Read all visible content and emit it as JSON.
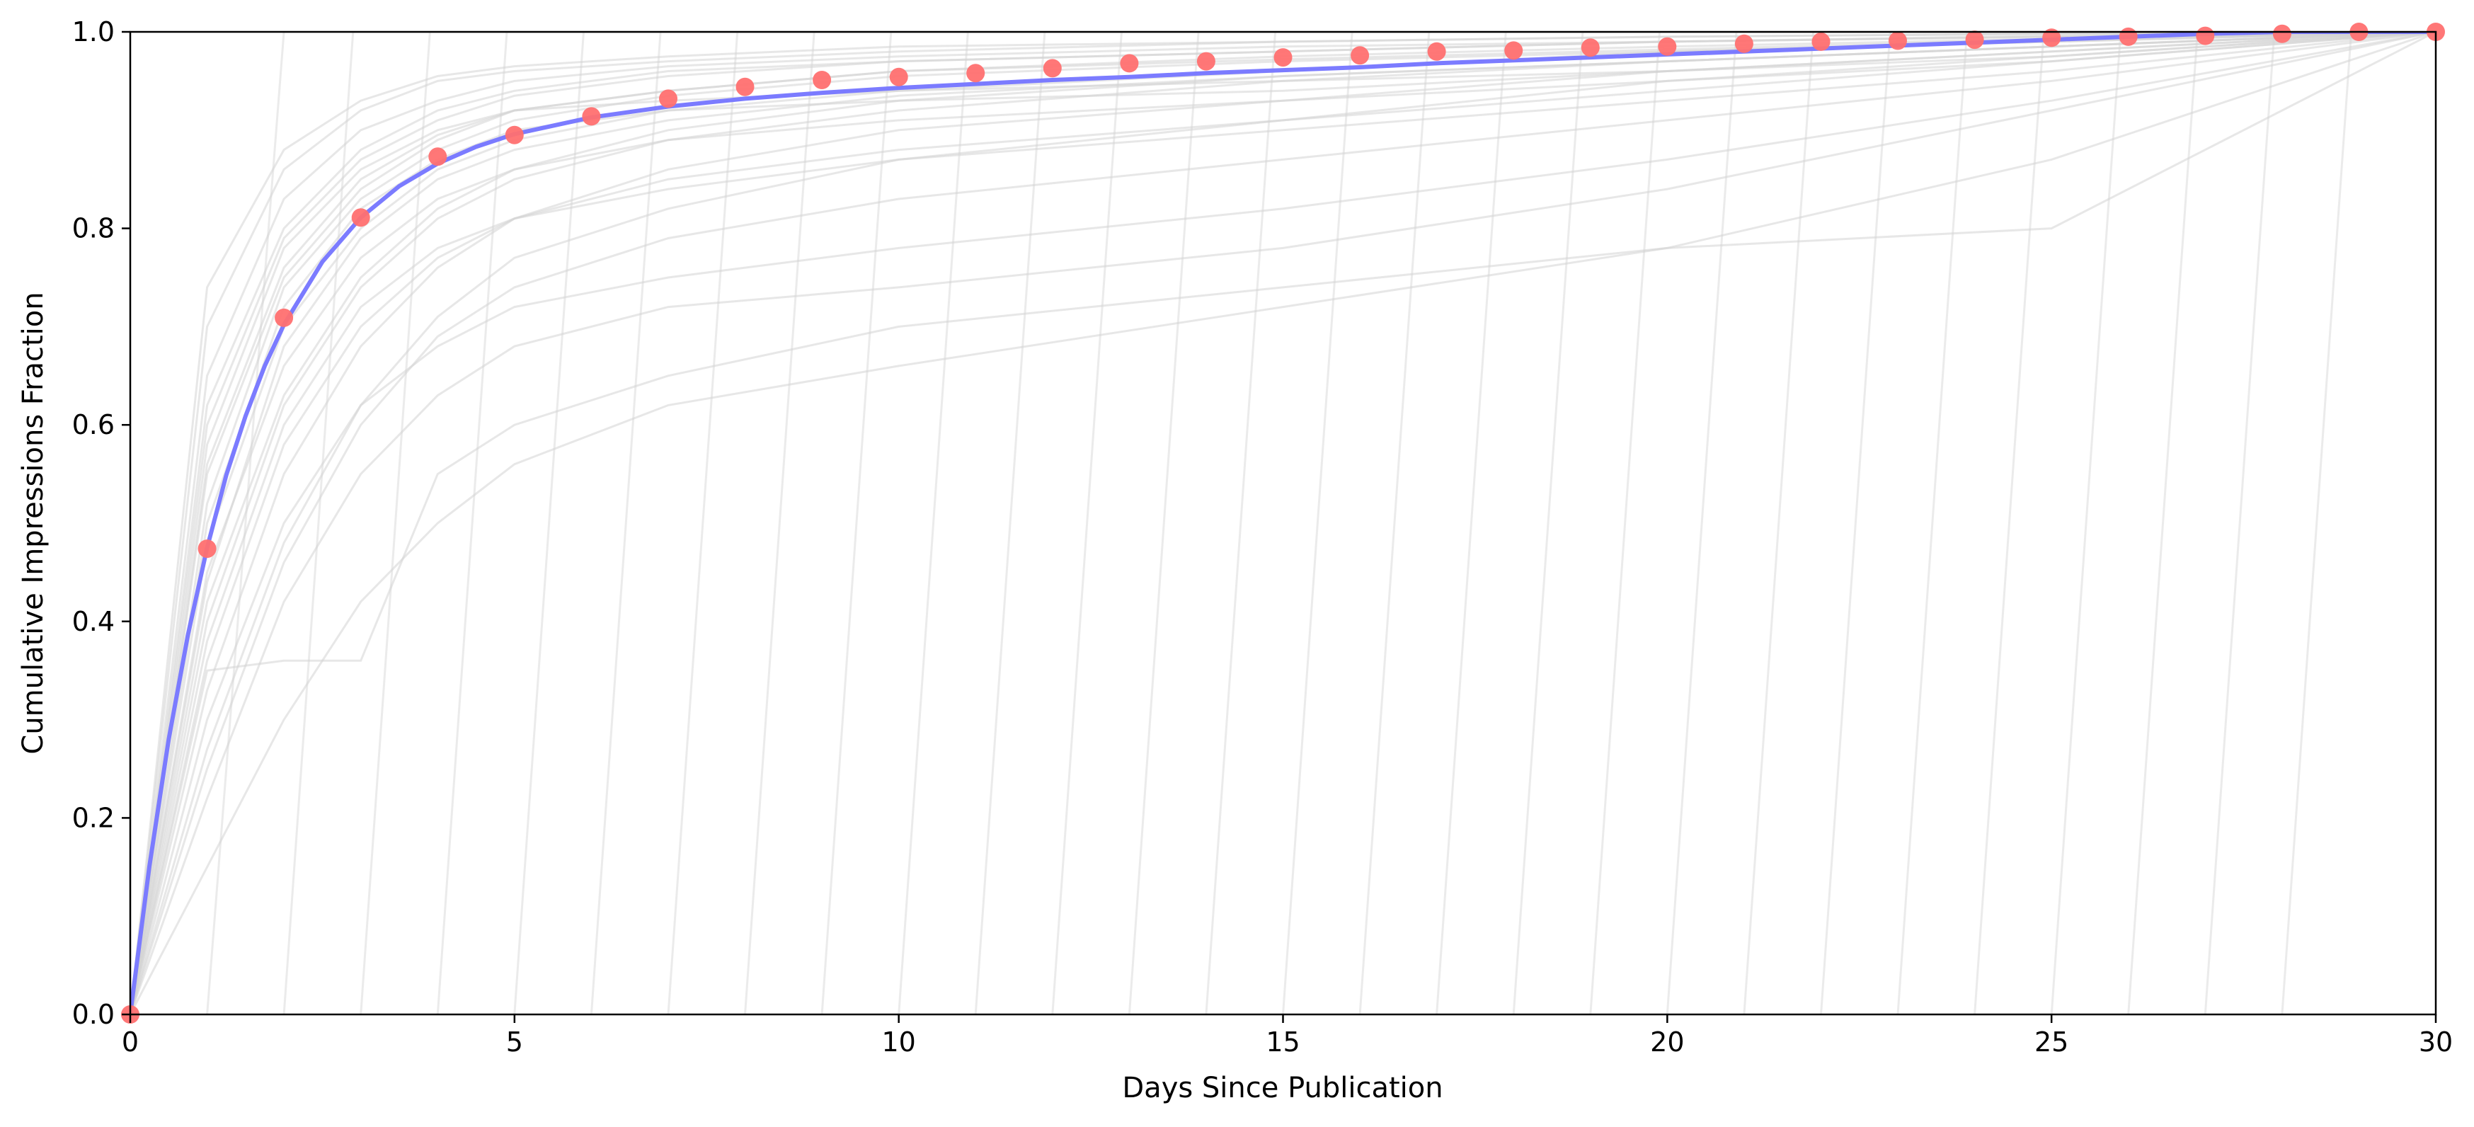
{
  "chart_data": {
    "type": "line",
    "title": "",
    "xlabel": "Days Since Publication",
    "ylabel": "Cumulative Impressions Fraction",
    "xlim": [
      0,
      30
    ],
    "ylim": [
      0,
      1.0
    ],
    "xticks": [
      0,
      5,
      10,
      15,
      20,
      25,
      30
    ],
    "xtick_labels": [
      "0",
      "5",
      "10",
      "15",
      "20",
      "25",
      "30"
    ],
    "yticks": [
      0,
      0.2,
      0.4,
      0.6,
      0.8,
      1.0
    ],
    "ytick_labels": [
      "0.0",
      "0.2",
      "0.4",
      "0.6",
      "0.8",
      "1.0"
    ],
    "grid": false,
    "legend": "none",
    "colors": {
      "individual_articles": "#d3d3d3",
      "average_points": "#ff7070",
      "fitted_curve": "#7b7bff"
    },
    "series": [
      {
        "kind": "scatter",
        "x": [
          0,
          1,
          2,
          3,
          4,
          5,
          6,
          7,
          8,
          9,
          10,
          11,
          12,
          13,
          14,
          15,
          16,
          17,
          18,
          19,
          20,
          21,
          22,
          23,
          24,
          25,
          26,
          27,
          28,
          29,
          30
        ],
        "values": [
          0.0,
          0.474,
          0.709,
          0.811,
          0.873,
          0.895,
          0.914,
          0.932,
          0.944,
          0.951,
          0.954,
          0.958,
          0.963,
          0.968,
          0.97,
          0.974,
          0.976,
          0.98,
          0.981,
          0.984,
          0.985,
          0.988,
          0.99,
          0.991,
          0.992,
          0.994,
          0.995,
          0.996,
          0.998,
          1.0,
          1.0
        ]
      },
      {
        "kind": "fit",
        "x": [
          0,
          0.25,
          0.5,
          0.75,
          1,
          1.25,
          1.5,
          1.75,
          2,
          2.5,
          3,
          3.5,
          4,
          4.5,
          5,
          6,
          7,
          8,
          9,
          10,
          11,
          12,
          13,
          14,
          15,
          16,
          17,
          18,
          19,
          20,
          21,
          22,
          23,
          24,
          25,
          26,
          27,
          28,
          29,
          30
        ],
        "values": [
          0.0,
          0.151,
          0.28,
          0.386,
          0.475,
          0.549,
          0.609,
          0.66,
          0.702,
          0.766,
          0.811,
          0.843,
          0.866,
          0.883,
          0.896,
          0.913,
          0.924,
          0.932,
          0.938,
          0.943,
          0.947,
          0.951,
          0.954,
          0.958,
          0.961,
          0.964,
          0.968,
          0.971,
          0.974,
          0.977,
          0.98,
          0.983,
          0.986,
          0.989,
          0.992,
          0.995,
          0.998,
          1.0,
          1.0,
          1.0
        ]
      },
      {
        "kind": "individual-curves",
        "curves": [
          {
            "x": [
              0,
              1,
              2,
              3,
              4,
              5,
              7,
              10,
              15,
              20,
              25,
              30
            ],
            "values": [
              0,
              0.62,
              0.8,
              0.88,
              0.92,
              0.94,
              0.96,
              0.97,
              0.98,
              0.99,
              0.995,
              1.0
            ]
          },
          {
            "x": [
              0,
              1,
              2,
              3,
              4,
              5,
              7,
              10,
              15,
              20,
              25,
              30
            ],
            "values": [
              0,
              0.55,
              0.75,
              0.84,
              0.89,
              0.92,
              0.94,
              0.96,
              0.975,
              0.985,
              0.993,
              1.0
            ]
          },
          {
            "x": [
              0,
              1,
              2,
              3,
              4,
              5,
              7,
              10,
              15,
              20,
              25,
              30
            ],
            "values": [
              0,
              0.48,
              0.7,
              0.8,
              0.86,
              0.89,
              0.92,
              0.94,
              0.96,
              0.98,
              0.99,
              1.0
            ]
          },
          {
            "x": [
              0,
              1,
              2,
              3,
              4,
              5,
              7,
              10,
              15,
              20,
              25,
              30
            ],
            "values": [
              0,
              0.4,
              0.62,
              0.74,
              0.81,
              0.85,
              0.89,
              0.92,
              0.95,
              0.97,
              0.985,
              1.0
            ]
          },
          {
            "x": [
              0,
              1,
              2,
              3,
              4,
              5,
              7,
              10,
              15,
              20,
              25,
              30
            ],
            "values": [
              0,
              0.33,
              0.55,
              0.68,
              0.76,
              0.81,
              0.86,
              0.9,
              0.93,
              0.96,
              0.98,
              1.0
            ]
          },
          {
            "x": [
              0,
              1,
              2,
              3,
              4,
              5,
              7,
              10,
              15,
              20,
              25,
              30
            ],
            "values": [
              0,
              0.27,
              0.48,
              0.62,
              0.71,
              0.77,
              0.82,
              0.87,
              0.91,
              0.95,
              0.975,
              1.0
            ]
          },
          {
            "x": [
              0,
              1,
              2,
              3,
              4,
              5,
              7,
              10,
              15,
              20,
              25,
              30
            ],
            "values": [
              0,
              0.7,
              0.86,
              0.92,
              0.95,
              0.96,
              0.97,
              0.98,
              0.99,
              0.995,
              0.998,
              1.0
            ]
          },
          {
            "x": [
              0,
              1,
              2,
              3,
              4,
              5,
              7,
              10,
              15,
              20,
              25,
              30
            ],
            "values": [
              0,
              0.74,
              0.88,
              0.93,
              0.955,
              0.965,
              0.975,
              0.985,
              0.99,
              0.995,
              0.998,
              1.0
            ]
          },
          {
            "x": [
              0,
              1,
              2,
              3,
              4,
              5,
              7,
              10,
              15,
              20,
              25,
              30
            ],
            "values": [
              0,
              0.45,
              0.66,
              0.77,
              0.83,
              0.86,
              0.89,
              0.91,
              0.93,
              0.95,
              0.97,
              1.0
            ]
          },
          {
            "x": [
              0,
              1,
              2,
              3,
              4,
              5,
              7,
              10,
              15,
              20,
              25,
              30
            ],
            "values": [
              0,
              0.38,
              0.6,
              0.72,
              0.78,
              0.81,
              0.84,
              0.87,
              0.9,
              0.93,
              0.96,
              1.0
            ]
          },
          {
            "x": [
              0,
              1,
              2,
              3,
              4,
              5,
              7,
              10,
              15,
              20,
              25,
              30
            ],
            "values": [
              0,
              0.3,
              0.5,
              0.62,
              0.68,
              0.72,
              0.75,
              0.78,
              0.82,
              0.87,
              0.93,
              1.0
            ]
          },
          {
            "x": [
              0,
              1,
              2,
              3,
              4,
              5,
              7,
              10,
              15,
              20,
              25,
              30
            ],
            "values": [
              0,
              0.22,
              0.42,
              0.55,
              0.63,
              0.68,
              0.72,
              0.74,
              0.78,
              0.84,
              0.92,
              1.0
            ]
          },
          {
            "x": [
              0,
              1,
              2,
              3,
              4,
              5,
              7,
              10,
              15,
              20,
              25,
              30
            ],
            "values": [
              0,
              0.58,
              0.78,
              0.86,
              0.9,
              0.92,
              0.93,
              0.94,
              0.95,
              0.96,
              0.98,
              1.0
            ]
          },
          {
            "x": [
              0,
              1,
              2,
              3,
              4,
              5,
              7,
              10,
              15,
              20,
              25,
              30
            ],
            "values": [
              0,
              0.5,
              0.72,
              0.82,
              0.87,
              0.9,
              0.92,
              0.93,
              0.94,
              0.96,
              0.975,
              1.0
            ]
          },
          {
            "x": [
              0,
              1,
              2,
              3,
              4,
              5,
              7,
              10,
              15,
              20,
              25,
              30
            ],
            "values": [
              0,
              0.36,
              0.58,
              0.7,
              0.77,
              0.81,
              0.85,
              0.88,
              0.91,
              0.94,
              0.97,
              1.0
            ]
          },
          {
            "x": [
              0,
              1,
              2,
              3,
              4,
              5,
              7,
              10,
              15,
              20,
              25,
              30
            ],
            "values": [
              0,
              0.65,
              0.83,
              0.9,
              0.93,
              0.95,
              0.965,
              0.975,
              0.985,
              0.99,
              0.995,
              1.0
            ]
          },
          {
            "x": [
              0,
              1,
              2,
              3,
              4,
              5,
              7,
              10,
              15,
              20,
              25,
              30
            ],
            "values": [
              0,
              0.42,
              0.63,
              0.75,
              0.82,
              0.86,
              0.9,
              0.93,
              0.955,
              0.97,
              0.985,
              1.0
            ]
          },
          {
            "x": [
              0,
              1,
              2,
              3,
              4,
              5,
              7,
              10,
              15,
              20,
              25,
              30
            ],
            "values": [
              0,
              0.52,
              0.74,
              0.83,
              0.88,
              0.91,
              0.935,
              0.955,
              0.97,
              0.98,
              0.99,
              1.0
            ]
          },
          {
            "x": [
              0,
              1,
              2,
              3,
              4,
              5,
              7,
              10,
              15,
              20,
              25,
              30
            ],
            "values": [
              0,
              0.25,
              0.46,
              0.6,
              0.69,
              0.74,
              0.79,
              0.83,
              0.87,
              0.91,
              0.95,
              1.0
            ]
          },
          {
            "x": [
              0,
              1,
              2,
              3,
              4,
              5,
              7,
              10,
              15,
              20,
              25,
              30
            ],
            "values": [
              0,
              0.6,
              0.79,
              0.87,
              0.91,
              0.935,
              0.955,
              0.97,
              0.98,
              0.99,
              0.996,
              1.0
            ]
          },
          {
            "x": [
              0,
              1,
              2,
              3,
              4,
              5,
              7,
              10,
              15,
              20,
              25,
              30
            ],
            "values": [
              0,
              0.35,
              0.36,
              0.36,
              0.55,
              0.6,
              0.65,
              0.7,
              0.74,
              0.78,
              0.8,
              1.0
            ]
          },
          {
            "x": [
              0,
              1,
              2,
              3,
              4,
              5,
              7,
              10,
              15,
              20,
              25,
              30
            ],
            "values": [
              0,
              0.15,
              0.3,
              0.42,
              0.5,
              0.56,
              0.62,
              0.66,
              0.72,
              0.78,
              0.87,
              1.0
            ]
          },
          {
            "x": [
              0,
              1,
              2,
              3,
              4,
              5,
              7,
              10,
              15,
              20,
              25,
              30
            ],
            "values": [
              0,
              0.44,
              0.68,
              0.79,
              0.85,
              0.88,
              0.91,
              0.935,
              0.955,
              0.97,
              0.985,
              1.0
            ]
          },
          {
            "x": [
              0,
              1,
              2,
              3,
              4,
              5,
              7,
              10,
              15,
              20,
              25,
              30
            ],
            "values": [
              0,
              0.56,
              0.76,
              0.85,
              0.895,
              0.92,
              0.94,
              0.96,
              0.972,
              0.982,
              0.992,
              1.0
            ]
          }
        ]
      },
      {
        "kind": "individual-ramps",
        "start_x": [
          1,
          2,
          3,
          4,
          5,
          6,
          7,
          8,
          9,
          10,
          11,
          12,
          13,
          14,
          15,
          16,
          17,
          18,
          19,
          20,
          21,
          22,
          23,
          24,
          25,
          26,
          27,
          28
        ],
        "end_x": [
          2,
          2.9,
          3.9,
          4.9,
          5.9,
          6.9,
          7.9,
          8.9,
          9.9,
          10.9,
          11.9,
          12.9,
          13.9,
          14.9,
          15.9,
          16.9,
          17.9,
          18.9,
          19.9,
          20.9,
          21.9,
          22.9,
          23.9,
          24.9,
          25.9,
          26.9,
          27.9,
          28.9
        ]
      }
    ]
  }
}
